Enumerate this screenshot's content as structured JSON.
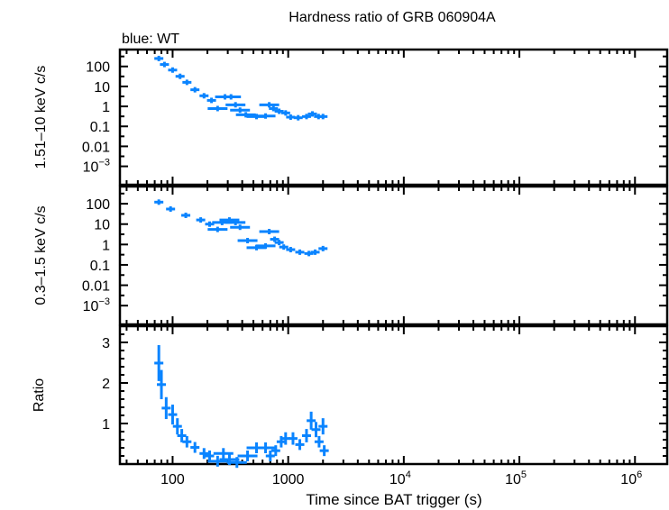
{
  "chart_data": {
    "type": "scatter",
    "title": "Hardness ratio of GRB 060904A",
    "subtitle": "blue: WT",
    "xlabel": "Time since BAT trigger (s)",
    "xscale": "log",
    "xlim": [
      35,
      1900000
    ],
    "xticks": [
      {
        "value": 100,
        "label": "100",
        "sup": ""
      },
      {
        "value": 1000,
        "label": "1000",
        "sup": ""
      },
      {
        "value": 10000,
        "label": "10",
        "sup": "4"
      },
      {
        "value": 100000,
        "label": "10",
        "sup": "5"
      },
      {
        "value": 1000000,
        "label": "10",
        "sup": "6"
      }
    ],
    "series_color": "#0a84ff",
    "panels": [
      {
        "ylabel": "1.51–10 keV c/s",
        "yscale": "log",
        "ylim": [
          0.00012,
          700
        ],
        "yticks": [
          {
            "value": 100,
            "label": "100",
            "sup": ""
          },
          {
            "value": 10,
            "label": "10",
            "sup": ""
          },
          {
            "value": 1,
            "label": "1",
            "sup": ""
          },
          {
            "value": 0.1,
            "label": "0.1",
            "sup": ""
          },
          {
            "value": 0.01,
            "label": "0.01",
            "sup": ""
          },
          {
            "value": 0.001,
            "label": "10",
            "sup": "−3"
          }
        ],
        "x": [
          76,
          85,
          100,
          116,
          133,
          156,
          187,
          217,
          245,
          284,
          320,
          350,
          383,
          430,
          532,
          637,
          685,
          745,
          835,
          950,
          1050,
          1220,
          1440,
          1620,
          1830,
          2000
        ],
        "y": [
          250,
          125,
          66,
          32,
          16,
          6.8,
          3.4,
          2,
          0.78,
          3,
          3,
          1.2,
          0.65,
          0.38,
          0.31,
          0.33,
          1.2,
          0.78,
          0.57,
          0.47,
          0.29,
          0.27,
          0.31,
          0.42,
          0.31,
          0.31
        ]
      },
      {
        "ylabel": "0.3–1.5 keV c/s",
        "yscale": "log",
        "ylim": [
          0.00012,
          700
        ],
        "yticks": [
          {
            "value": 100,
            "label": "100",
            "sup": ""
          },
          {
            "value": 10,
            "label": "10",
            "sup": ""
          },
          {
            "value": 1,
            "label": "1",
            "sup": ""
          },
          {
            "value": 0.1,
            "label": "0.1",
            "sup": ""
          },
          {
            "value": 0.01,
            "label": "0.01",
            "sup": ""
          },
          {
            "value": 0.001,
            "label": "10",
            "sup": "−3"
          }
        ],
        "x": [
          76,
          96,
          130,
          175,
          209,
          245,
          268,
          310,
          350,
          383,
          445,
          532,
          637,
          685,
          763,
          835,
          915,
          1050,
          1260,
          1510,
          1710,
          2000
        ],
        "y": [
          120,
          55,
          27,
          16,
          10,
          5.5,
          12,
          16,
          12,
          7,
          1.55,
          0.7,
          0.85,
          4.3,
          1.8,
          1.25,
          0.75,
          0.56,
          0.42,
          0.36,
          0.42,
          0.63
        ]
      },
      {
        "ylabel": "Ratio",
        "yscale": "linear",
        "ylim": [
          0,
          3.4
        ],
        "yticks": [
          {
            "value": 3,
            "label": "3",
            "sup": ""
          },
          {
            "value": 2,
            "label": "2",
            "sup": ""
          },
          {
            "value": 1,
            "label": "1",
            "sup": ""
          }
        ],
        "x": [
          76,
          80,
          88,
          100,
          110,
          120,
          133,
          156,
          187,
          209,
          245,
          275,
          310,
          360,
          445,
          532,
          637,
          700,
          780,
          870,
          950,
          1100,
          1260,
          1440,
          1580,
          1740,
          1850,
          2000,
          2050
        ],
        "y": [
          2.49,
          1.96,
          1.38,
          1.22,
          0.93,
          0.7,
          0.55,
          0.41,
          0.26,
          0.2,
          0.07,
          0.26,
          0.11,
          0.04,
          0.2,
          0.4,
          0.4,
          0.2,
          0.33,
          0.55,
          0.63,
          0.63,
          0.48,
          0.7,
          1.07,
          0.85,
          0.55,
          0.93,
          0.33
        ]
      }
    ],
    "grid": false,
    "legend": "none"
  }
}
